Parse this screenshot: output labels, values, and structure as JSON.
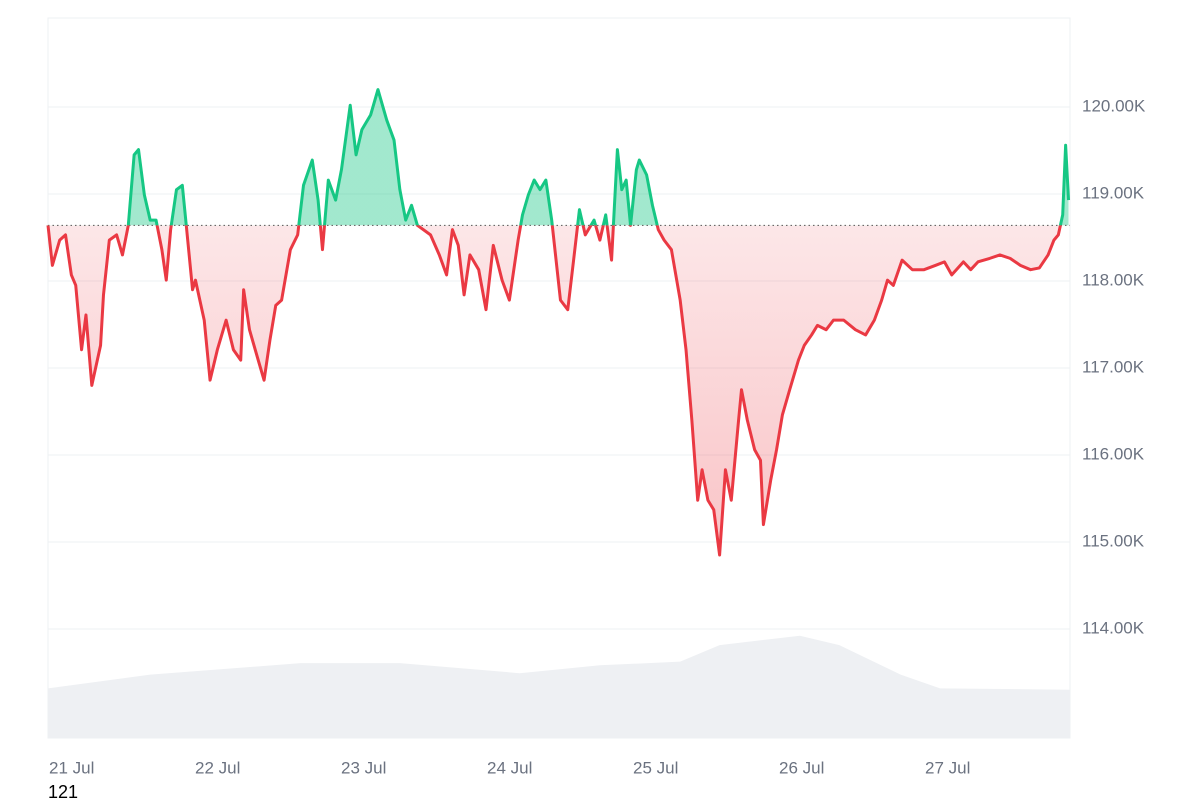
{
  "chart_data": {
    "type": "line",
    "x": [
      0,
      0.03,
      0.08,
      0.12,
      0.16,
      0.19,
      0.23,
      0.26,
      0.3,
      0.36,
      0.38,
      0.42,
      0.47,
      0.51,
      0.55,
      0.59,
      0.62,
      0.66,
      0.7,
      0.74,
      0.78,
      0.81,
      0.84,
      0.88,
      0.92,
      0.95,
      0.99,
      1.01,
      1.07,
      1.11,
      1.16,
      1.22,
      1.27,
      1.32,
      1.34,
      1.38,
      1.44,
      1.48,
      1.52,
      1.56,
      1.6,
      1.66,
      1.71,
      1.75,
      1.81,
      1.85,
      1.88,
      1.92,
      1.97,
      2.01,
      2.07,
      2.11,
      2.15,
      2.21,
      2.26,
      2.32,
      2.37,
      2.41,
      2.45,
      2.49,
      2.53,
      2.62,
      2.68,
      2.73,
      2.77,
      2.81,
      2.85,
      2.89,
      2.95,
      3.0,
      3.05,
      3.11,
      3.16,
      3.22,
      3.25,
      3.29,
      3.33,
      3.37,
      3.41,
      3.45,
      3.51,
      3.56,
      3.6,
      3.64,
      3.68,
      3.74,
      3.78,
      3.82,
      3.86,
      3.9,
      3.93,
      3.96,
      3.99,
      4.03,
      4.05,
      4.1,
      4.14,
      4.18,
      4.22,
      4.27,
      4.33,
      4.37,
      4.41,
      4.45,
      4.48,
      4.52,
      4.56,
      4.6,
      4.64,
      4.68,
      4.73,
      4.75,
      4.79,
      4.84,
      4.88,
      4.9,
      4.95,
      4.99,
      5.03,
      5.08,
      5.14,
      5.18,
      5.23,
      5.27,
      5.33,
      5.38,
      5.45,
      5.53,
      5.6,
      5.66,
      5.71,
      5.75,
      5.79,
      5.85,
      5.92,
      6.0,
      6.08,
      6.14,
      6.19,
      6.27,
      6.32,
      6.37,
      6.45,
      6.52,
      6.59,
      6.66,
      6.73,
      6.79,
      6.85,
      6.89,
      6.92,
      6.95,
      6.97,
      6.99
    ],
    "values": [
      118640,
      118180,
      118470,
      118530,
      118070,
      117950,
      117210,
      117610,
      116800,
      117260,
      117840,
      118470,
      118530,
      118300,
      118640,
      119450,
      119510,
      118990,
      118700,
      118700,
      118360,
      118010,
      118590,
      119050,
      119100,
      118590,
      117900,
      118010,
      117550,
      116860,
      117210,
      117550,
      117210,
      117090,
      117900,
      117440,
      117090,
      116860,
      117320,
      117720,
      117780,
      118360,
      118530,
      119100,
      119390,
      118930,
      118360,
      119160,
      118930,
      119280,
      120020,
      119450,
      119740,
      119910,
      120200,
      119850,
      119620,
      119050,
      118700,
      118870,
      118640,
      118530,
      118300,
      118070,
      118590,
      118410,
      117840,
      118300,
      118130,
      117670,
      118410,
      118010,
      117780,
      118470,
      118760,
      118990,
      119160,
      119050,
      119160,
      118700,
      117780,
      117670,
      118240,
      118820,
      118530,
      118700,
      118470,
      118760,
      118240,
      119510,
      119050,
      119160,
      118640,
      119280,
      119390,
      119220,
      118870,
      118590,
      118470,
      118360,
      117780,
      117210,
      116400,
      115480,
      115830,
      115480,
      115370,
      114850,
      115830,
      115480,
      116400,
      116750,
      116400,
      116060,
      115940,
      115200,
      115710,
      116060,
      116460,
      116750,
      117090,
      117260,
      117380,
      117490,
      117440,
      117550,
      117550,
      117440,
      117380,
      117550,
      117780,
      118010,
      117950,
      118240,
      118130,
      118130,
      118180,
      118220,
      118070,
      118220,
      118130,
      118220,
      118260,
      118300,
      118260,
      118180,
      118130,
      118150,
      118300,
      118470,
      118530,
      118760,
      119560,
      118930
    ],
    "baseline": 118640,
    "up_color": "#16c784",
    "down_color": "#ea3943",
    "volume": {
      "color": "#eef0f3",
      "x": [
        0,
        0.7,
        1.73,
        2.41,
        3.23,
        3.78,
        4.33,
        4.6,
        5.15,
        5.42,
        5.84,
        6.11,
        7.0
      ],
      "values": [
        6.9,
        8.8,
        10.4,
        10.4,
        9.0,
        10.1,
        10.6,
        12.9,
        14.2,
        12.9,
        8.8,
        6.9,
        6.7
      ],
      "lim": [
        0,
        100
      ]
    },
    "xlim": [
      0,
      7.0
    ],
    "xticks": [
      {
        "value": 0,
        "label": "21 Jul"
      },
      {
        "value": 1,
        "label": "22 Jul"
      },
      {
        "value": 2,
        "label": "23 Jul"
      },
      {
        "value": 3,
        "label": "24 Jul"
      },
      {
        "value": 4,
        "label": "25 Jul"
      },
      {
        "value": 5,
        "label": "26 Jul"
      },
      {
        "value": 6,
        "label": "27 Jul"
      }
    ],
    "ylim": [
      112747,
      121023
    ],
    "yticks": [
      {
        "value": 114000,
        "label": "114.00K"
      },
      {
        "value": 115000,
        "label": "115.00K"
      },
      {
        "value": 116000,
        "label": "116.00K"
      },
      {
        "value": 117000,
        "label": "117.00K"
      },
      {
        "value": 118000,
        "label": "118.00K"
      },
      {
        "value": 119000,
        "label": "119.00K"
      },
      {
        "value": 120000,
        "label": "120.00K"
      }
    ],
    "grid": true,
    "footer_note": "121"
  }
}
